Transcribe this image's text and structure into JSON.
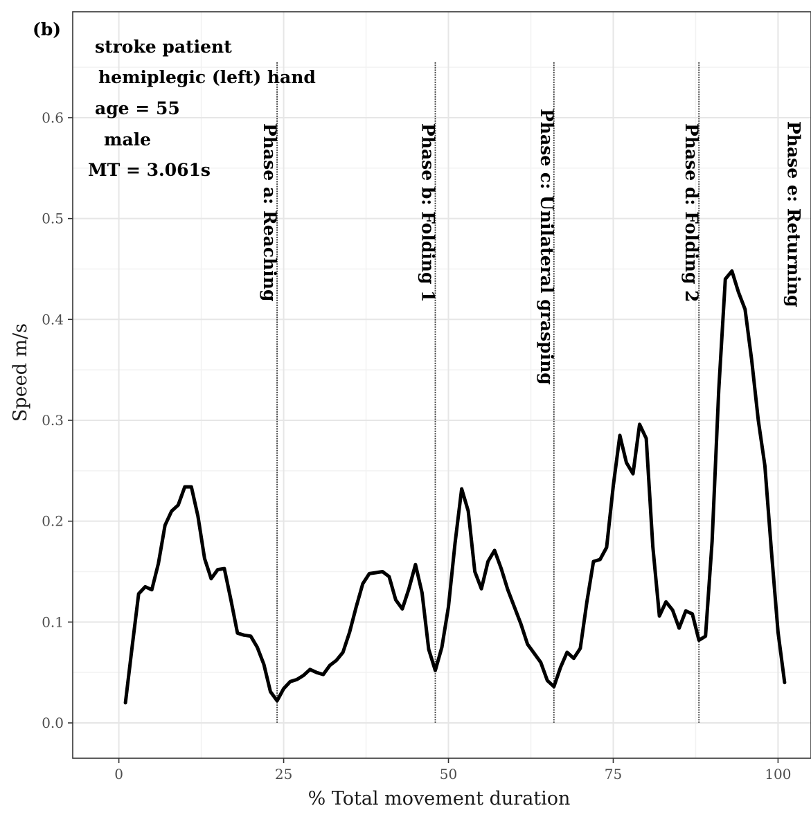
{
  "chart_data": {
    "type": "line",
    "panel_tag": "(b)",
    "xlabel": "% Total movement duration",
    "ylabel": "Speed m/s",
    "xlim": [
      -7,
      105
    ],
    "ylim": [
      -0.035,
      0.705
    ],
    "xticks": [
      0,
      25,
      50,
      75,
      100
    ],
    "xtick_labels": [
      "0",
      "25",
      "50",
      "75",
      "100"
    ],
    "yticks": [
      0.0,
      0.1,
      0.2,
      0.3,
      0.4,
      0.5,
      0.6
    ],
    "ytick_labels": [
      "0.0",
      "0.1",
      "0.2",
      "0.3",
      "0.4",
      "0.5",
      "0.6"
    ],
    "grid": true,
    "info_lines": [
      "stroke patient",
      "hemiplegic (left) hand",
      "age = 55",
      "male",
      "MT = 3.061s"
    ],
    "phase_boundaries": [
      24,
      48,
      66,
      88
    ],
    "phase_labels": [
      "Phase a: Reaching",
      "Phase b: Folding 1",
      "Phase c: Unilateral grasping",
      "Phase d: Folding 2",
      "Phase e: Returning"
    ],
    "series": [
      {
        "color": "#000000",
        "x": [
          1,
          2,
          3,
          4,
          5,
          6,
          7,
          8,
          9,
          10,
          11,
          12,
          13,
          14,
          15,
          16,
          17,
          18,
          19,
          20,
          21,
          22,
          23,
          24,
          25,
          26,
          27,
          28,
          29,
          30,
          31,
          32,
          33,
          34,
          35,
          36,
          37,
          38,
          39,
          40,
          41,
          42,
          43,
          44,
          45,
          46,
          47,
          48,
          49,
          50,
          51,
          52,
          53,
          54,
          55,
          56,
          57,
          58,
          59,
          60,
          61,
          62,
          63,
          64,
          65,
          66,
          67,
          68,
          69,
          70,
          71,
          72,
          73,
          74,
          75,
          76,
          77,
          78,
          79,
          80,
          81,
          82,
          83,
          84,
          85,
          86,
          87,
          88,
          89,
          90,
          91,
          92,
          93,
          94,
          95,
          96,
          97,
          98,
          99,
          100,
          101
        ],
        "y": [
          0.02,
          0.075,
          0.128,
          0.135,
          0.132,
          0.158,
          0.196,
          0.21,
          0.216,
          0.234,
          0.234,
          0.205,
          0.163,
          0.143,
          0.152,
          0.153,
          0.122,
          0.089,
          0.087,
          0.086,
          0.075,
          0.058,
          0.031,
          0.022,
          0.034,
          0.041,
          0.043,
          0.047,
          0.053,
          0.05,
          0.048,
          0.057,
          0.062,
          0.07,
          0.09,
          0.115,
          0.138,
          0.148,
          0.149,
          0.15,
          0.145,
          0.122,
          0.113,
          0.133,
          0.157,
          0.129,
          0.073,
          0.052,
          0.075,
          0.115,
          0.178,
          0.232,
          0.21,
          0.15,
          0.133,
          0.16,
          0.171,
          0.153,
          0.132,
          0.115,
          0.098,
          0.078,
          0.069,
          0.06,
          0.042,
          0.036,
          0.055,
          0.07,
          0.064,
          0.074,
          0.12,
          0.16,
          0.162,
          0.174,
          0.235,
          0.285,
          0.258,
          0.247,
          0.296,
          0.282,
          0.175,
          0.106,
          0.12,
          0.112,
          0.094,
          0.111,
          0.108,
          0.082,
          0.086,
          0.18,
          0.33,
          0.44,
          0.448,
          0.427,
          0.41,
          0.36,
          0.3,
          0.255,
          0.17,
          0.09,
          0.04
        ]
      }
    ]
  }
}
